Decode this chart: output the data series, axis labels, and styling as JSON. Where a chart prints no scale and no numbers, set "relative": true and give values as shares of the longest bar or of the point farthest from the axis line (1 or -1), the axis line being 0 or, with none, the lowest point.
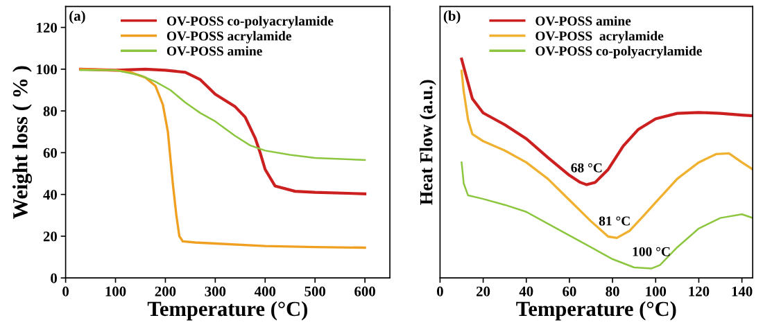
{
  "chart_data": [
    {
      "type": "line",
      "xlabel": "Temperature (°C)",
      "ylabel": "Weight loss ( % )",
      "annotations": [
        "(a)"
      ],
      "xlim": [
        0,
        650
      ],
      "ylim": [
        0,
        130
      ],
      "xticks": [
        0,
        100,
        200,
        300,
        400,
        500,
        600
      ],
      "yticks": [
        0,
        20,
        40,
        60,
        80,
        100,
        120
      ],
      "grid": false,
      "legend": "top",
      "marker": "none",
      "line_style": "solid",
      "series": [
        {
          "name": "OV-POSS co-polyacrylamide",
          "color": "#cc1f1f",
          "x": [
            30,
            100,
            160,
            200,
            240,
            270,
            300,
            340,
            360,
            380,
            390,
            400,
            420,
            460,
            500,
            600
          ],
          "values": [
            100,
            99.5,
            100,
            99.5,
            98.5,
            95,
            88,
            82,
            77,
            67,
            60,
            52,
            44,
            41.5,
            41,
            40.3
          ]
        },
        {
          "name": "OV-POSS acrylamide",
          "color": "#f0a020",
          "x": [
            30,
            100,
            130,
            160,
            180,
            195,
            205,
            215,
            222,
            228,
            235,
            260,
            300,
            400,
            500,
            600
          ],
          "values": [
            100,
            99.5,
            98.5,
            96,
            92,
            83,
            70,
            45,
            30,
            20,
            17.5,
            17,
            16.5,
            15.3,
            14.8,
            14.5
          ]
        },
        {
          "name": "OV-POSS amine",
          "color": "#8cc63f",
          "x": [
            30,
            100,
            150,
            180,
            210,
            240,
            270,
            300,
            340,
            370,
            400,
            450,
            500,
            600
          ],
          "values": [
            99.5,
            99.5,
            97,
            94,
            90,
            84,
            79,
            75,
            68,
            63.5,
            61,
            59,
            57.5,
            56.5
          ]
        }
      ]
    },
    {
      "type": "line",
      "relative": true,
      "xlabel": "Temperature (°C)",
      "ylabel": "Heat Flow (a.u.)",
      "xlim": [
        0,
        145
      ],
      "xticks": [
        0,
        20,
        40,
        60,
        80,
        100,
        120,
        140
      ],
      "grid": false,
      "legend": "top",
      "marker": "none",
      "line_style": "solid",
      "annotations": [
        "(b)",
        {
          "text": "68 °C",
          "x": 68,
          "y": 0.426
        },
        {
          "text": "81 °C",
          "x": 81,
          "y": 0.183
        },
        {
          "text": "100 °C",
          "x": 98,
          "y": 0.043
        }
      ],
      "series": [
        {
          "name": "OV-POSS amine",
          "color": "#cc1f1f",
          "x": [
            10,
            12,
            15,
            20,
            30,
            40,
            50,
            60,
            65,
            68,
            72,
            78,
            85,
            92,
            100,
            110,
            120,
            130,
            140,
            145
          ],
          "values": [
            1.0,
            0.927,
            0.819,
            0.754,
            0.7,
            0.636,
            0.55,
            0.469,
            0.437,
            0.426,
            0.437,
            0.496,
            0.603,
            0.679,
            0.727,
            0.752,
            0.756,
            0.752,
            0.744,
            0.741
          ]
        },
        {
          "name": "OV-POSS  acrylamide",
          "color": "#f0b030",
          "x": [
            10,
            11,
            13,
            15,
            20,
            30,
            40,
            50,
            60,
            70,
            78,
            82,
            88,
            95,
            100,
            110,
            120,
            128,
            134,
            140,
            145
          ],
          "values": [
            0.946,
            0.851,
            0.722,
            0.657,
            0.625,
            0.582,
            0.528,
            0.453,
            0.356,
            0.259,
            0.189,
            0.183,
            0.216,
            0.291,
            0.345,
            0.453,
            0.528,
            0.566,
            0.569,
            0.528,
            0.496
          ]
        },
        {
          "name": "OV-POSS co-polyacrylamide",
          "color": "#8cc63f",
          "x": [
            10,
            11,
            13,
            20,
            30,
            40,
            50,
            60,
            70,
            80,
            90,
            98,
            102,
            110,
            120,
            130,
            140,
            145
          ],
          "values": [
            0.528,
            0.431,
            0.377,
            0.361,
            0.334,
            0.302,
            0.248,
            0.194,
            0.14,
            0.086,
            0.048,
            0.043,
            0.059,
            0.14,
            0.226,
            0.274,
            0.291,
            0.274
          ]
        }
      ]
    }
  ]
}
